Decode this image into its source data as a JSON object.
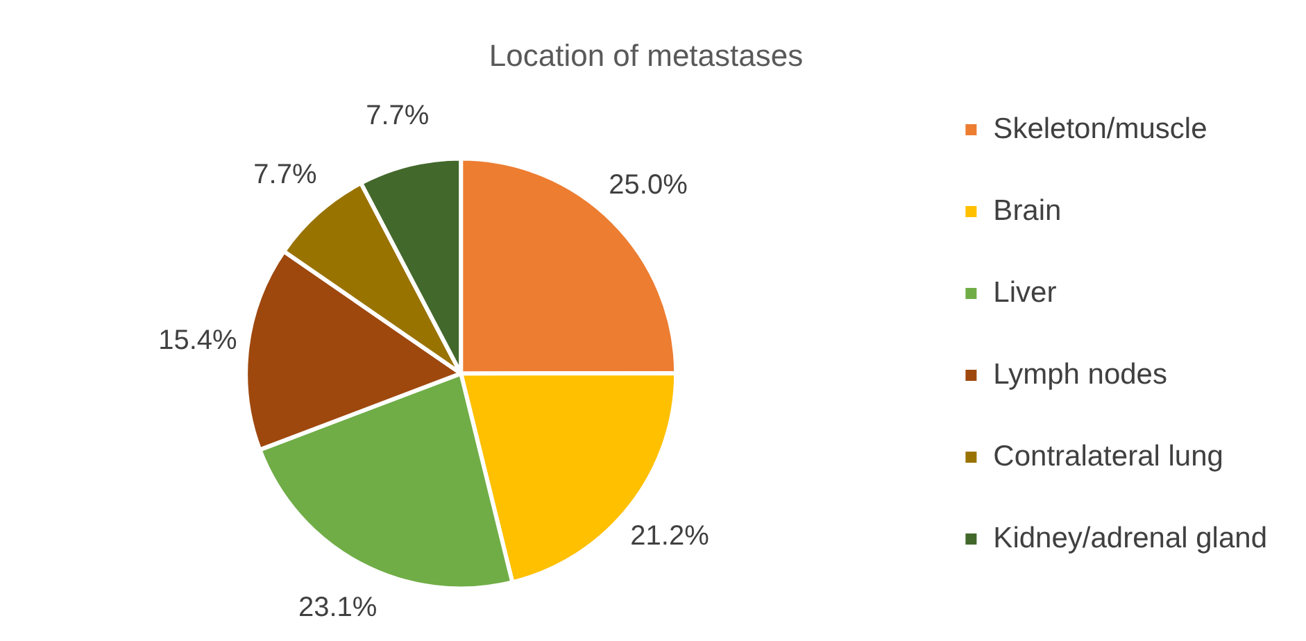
{
  "chart_data": {
    "type": "pie",
    "title": "Location of metastases",
    "categories": [
      "Skeleton/muscle",
      "Brain",
      "Liver",
      "Lymph nodes",
      "Contralateral lung",
      "Kidney/adrenal gland"
    ],
    "values": [
      25.0,
      21.2,
      23.1,
      15.4,
      7.7,
      7.7
    ],
    "colors": [
      "#ed7d31",
      "#ffc000",
      "#70ad47",
      "#9e480e",
      "#997300",
      "#43682b"
    ],
    "value_labels": [
      "25.0%",
      "21.2%",
      "23.1%",
      "15.4%",
      "7.7%",
      "7.7%"
    ],
    "legend": "right"
  }
}
